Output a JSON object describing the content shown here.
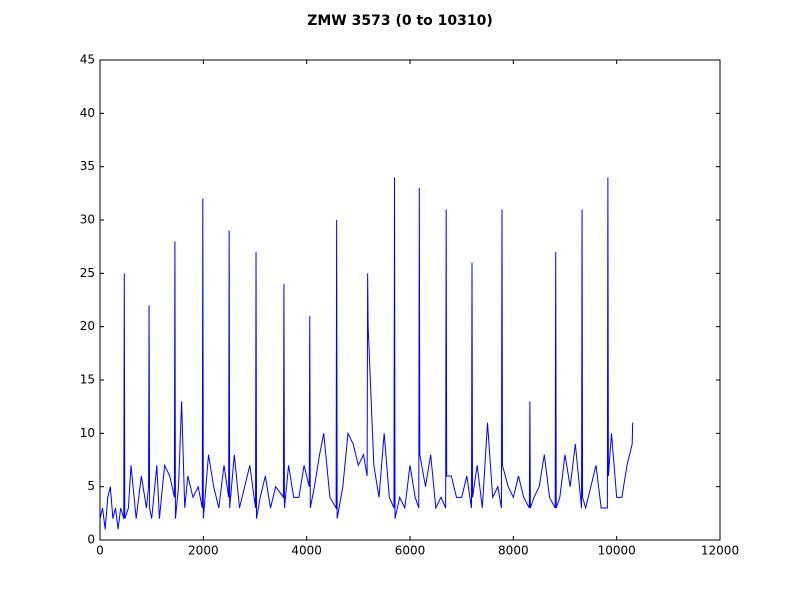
{
  "chart_data": {
    "type": "line",
    "title": "ZMW 3573 (0 to 10310)",
    "x": [
      0,
      50,
      100,
      150,
      200,
      250,
      300,
      350,
      400,
      460,
      470,
      480,
      550,
      600,
      700,
      800,
      900,
      940,
      950,
      960,
      1000,
      1100,
      1150,
      1250,
      1350,
      1440,
      1450,
      1460,
      1520,
      1580,
      1640,
      1700,
      1800,
      1900,
      1980,
      1990,
      2000,
      2100,
      2200,
      2300,
      2400,
      2490,
      2500,
      2510,
      2600,
      2700,
      2800,
      2900,
      3010,
      3020,
      3030,
      3100,
      3200,
      3300,
      3400,
      3550,
      3560,
      3570,
      3650,
      3750,
      3850,
      3950,
      4050,
      4060,
      4070,
      4150,
      4250,
      4330,
      4450,
      4570,
      4580,
      4590,
      4700,
      4800,
      4900,
      5000,
      5100,
      5170,
      5180,
      5190,
      5300,
      5400,
      5500,
      5600,
      5690,
      5700,
      5710,
      5800,
      5900,
      6000,
      6100,
      6170,
      6180,
      6190,
      6300,
      6400,
      6500,
      6600,
      6690,
      6700,
      6710,
      6800,
      6900,
      7000,
      7100,
      7190,
      7200,
      7210,
      7300,
      7400,
      7500,
      7600,
      7700,
      7770,
      7780,
      7790,
      7900,
      8000,
      8100,
      8200,
      8310,
      8320,
      8330,
      8400,
      8500,
      8600,
      8700,
      8810,
      8820,
      8830,
      8900,
      9000,
      9100,
      9200,
      9320,
      9330,
      9340,
      9400,
      9500,
      9600,
      9700,
      9820,
      9830,
      9840,
      9900,
      10000,
      10100,
      10200,
      10300,
      10310
    ],
    "series": [
      {
        "color": "#0000ff",
        "values": [
          2,
          3,
          1,
          4,
          5,
          2,
          3,
          1,
          3,
          2,
          25,
          2,
          3,
          7,
          2,
          6,
          3,
          5,
          22,
          3,
          2,
          7,
          2,
          7,
          6,
          4,
          28,
          2,
          5,
          13,
          3,
          6,
          4,
          5,
          3,
          32,
          2,
          8,
          5,
          3,
          7,
          4,
          29,
          3,
          8,
          3,
          5,
          7,
          3,
          27,
          2,
          4,
          6,
          3,
          5,
          4,
          24,
          3,
          7,
          4,
          4,
          7,
          5,
          21,
          3,
          5,
          8,
          10,
          4,
          3,
          30,
          2,
          5,
          10,
          9,
          7,
          8,
          6,
          25,
          20,
          7,
          4,
          10,
          4,
          3,
          34,
          2,
          4,
          3,
          7,
          4,
          3,
          33,
          8,
          5,
          8,
          3,
          4,
          3,
          31,
          6,
          6,
          4,
          4,
          6,
          3,
          26,
          4,
          7,
          3,
          11,
          4,
          5,
          3,
          31,
          7,
          5,
          4,
          6,
          4,
          3,
          13,
          3,
          4,
          5,
          8,
          4,
          3,
          27,
          3,
          4,
          8,
          5,
          9,
          3,
          31,
          4,
          3,
          5,
          7,
          3,
          3,
          34,
          6,
          10,
          4,
          4,
          7,
          9,
          11
        ]
      }
    ],
    "xlim": [
      0,
      12000
    ],
    "ylim": [
      0,
      45
    ],
    "xticks": [
      0,
      2000,
      4000,
      6000,
      8000,
      10000,
      12000
    ],
    "yticks": [
      0,
      5,
      10,
      15,
      20,
      25,
      30,
      35,
      40,
      45
    ]
  }
}
